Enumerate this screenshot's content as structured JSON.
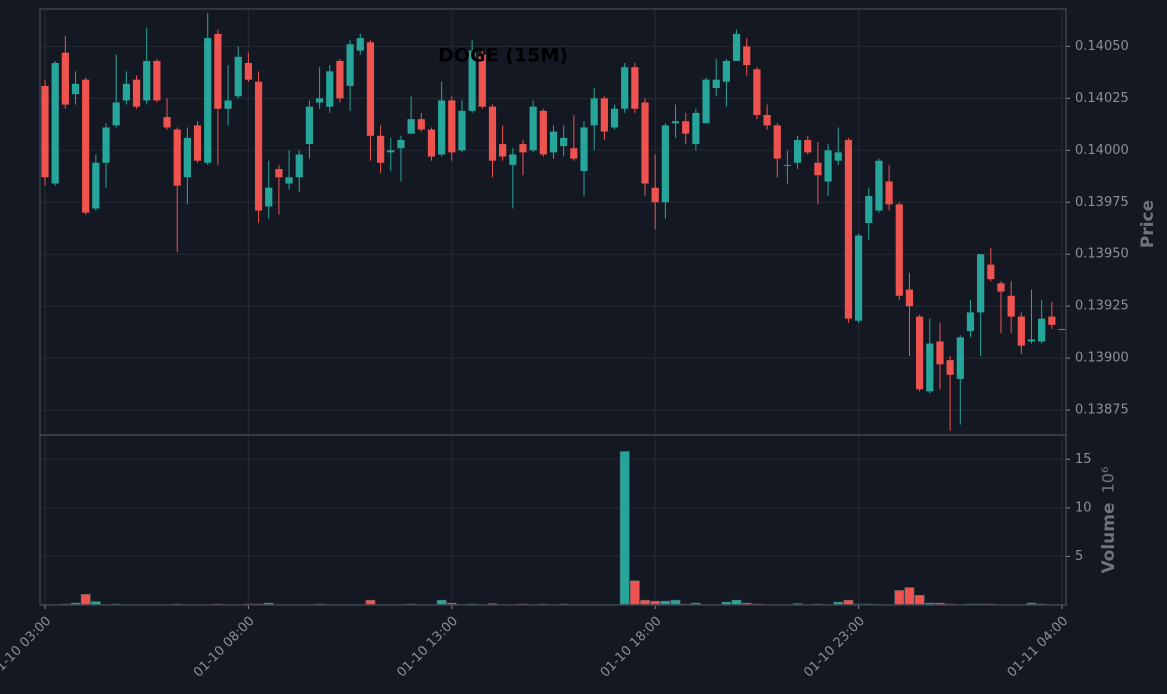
{
  "chart_data": {
    "type": "candlestick",
    "title": "DOGE (15M)",
    "ylabel": "Price",
    "volume_label": "Volume",
    "volume_exponent": "10⁶",
    "x": [
      "01-10 03:00",
      "01-10 03:15",
      "01-10 03:30",
      "01-10 03:45",
      "01-10 04:00",
      "01-10 04:15",
      "01-10 04:30",
      "01-10 04:45",
      "01-10 05:00",
      "01-10 05:15",
      "01-10 05:30",
      "01-10 05:45",
      "01-10 06:00",
      "01-10 06:15",
      "01-10 06:30",
      "01-10 06:45",
      "01-10 07:00",
      "01-10 07:15",
      "01-10 07:30",
      "01-10 07:45",
      "01-10 08:00",
      "01-10 08:15",
      "01-10 08:30",
      "01-10 08:45",
      "01-10 09:00",
      "01-10 09:15",
      "01-10 09:30",
      "01-10 09:45",
      "01-10 10:00",
      "01-10 10:15",
      "01-10 10:30",
      "01-10 10:45",
      "01-10 11:00",
      "01-10 11:15",
      "01-10 11:30",
      "01-10 11:45",
      "01-10 12:00",
      "01-10 12:15",
      "01-10 12:30",
      "01-10 12:45",
      "01-10 13:00",
      "01-10 13:15",
      "01-10 13:30",
      "01-10 13:45",
      "01-10 14:00",
      "01-10 14:15",
      "01-10 14:30",
      "01-10 14:45",
      "01-10 15:00",
      "01-10 15:15",
      "01-10 15:30",
      "01-10 15:45",
      "01-10 16:00",
      "01-10 16:15",
      "01-10 16:30",
      "01-10 16:45",
      "01-10 17:00",
      "01-10 17:15",
      "01-10 17:30",
      "01-10 17:45",
      "01-10 18:00",
      "01-10 18:15",
      "01-10 18:30",
      "01-10 18:45",
      "01-10 19:00",
      "01-10 19:15",
      "01-10 19:30",
      "01-10 19:45",
      "01-10 20:00",
      "01-10 20:15",
      "01-10 20:30",
      "01-10 20:45",
      "01-10 21:00",
      "01-10 21:15",
      "01-10 21:30",
      "01-10 21:45",
      "01-10 22:00",
      "01-10 22:15",
      "01-10 22:30",
      "01-10 22:45",
      "01-10 23:00",
      "01-10 23:15",
      "01-10 23:30",
      "01-10 23:45",
      "01-11 00:00",
      "01-11 00:15",
      "01-11 00:30",
      "01-11 00:45",
      "01-11 01:00",
      "01-11 01:15",
      "01-11 01:30",
      "01-11 01:45",
      "01-11 02:00",
      "01-11 02:15",
      "01-11 02:30",
      "01-11 02:45",
      "01-11 03:00",
      "01-11 03:15",
      "01-11 03:30",
      "01-11 03:45",
      "01-11 04:00"
    ],
    "open": [
      0.14031,
      0.13984,
      0.14047,
      0.14027,
      0.14034,
      0.13972,
      0.13994,
      0.14012,
      0.14024,
      0.14034,
      0.14024,
      0.14043,
      0.14016,
      0.1401,
      0.13987,
      0.14012,
      0.13994,
      0.14056,
      0.1402,
      0.14026,
      0.14042,
      0.14033,
      0.13973,
      0.13991,
      0.13984,
      0.13987,
      0.14003,
      0.14023,
      0.14021,
      0.14043,
      0.14031,
      0.14048,
      0.14052,
      0.14007,
      0.13999,
      0.14001,
      0.14008,
      0.14015,
      0.1401,
      0.13998,
      0.14024,
      0.14,
      0.14019,
      0.14046,
      0.14021,
      0.14003,
      0.13993,
      0.14003,
      0.14,
      0.14019,
      0.13999,
      0.14002,
      0.14001,
      0.1399,
      0.14012,
      0.14025,
      0.14011,
      0.1402,
      0.1404,
      0.14023,
      0.13982,
      0.13975,
      0.14013,
      0.14014,
      0.14003,
      0.14013,
      0.1403,
      0.14033,
      0.14043,
      0.1405,
      0.14039,
      0.14017,
      0.14012,
      0.13993,
      0.13994,
      0.14005,
      0.13994,
      0.13985,
      0.13995,
      0.14005,
      0.13918,
      0.13965,
      0.13971,
      0.13985,
      0.13974,
      0.13933,
      0.1392,
      0.13884,
      0.13908,
      0.13899,
      0.1389,
      0.13913,
      0.13922,
      0.13945,
      0.13936,
      0.1393,
      0.1392,
      0.13908,
      0.13908,
      0.1392,
      0.13914
    ],
    "high": [
      0.14034,
      0.14043,
      0.14055,
      0.14038,
      0.14035,
      0.13998,
      0.14013,
      0.14046,
      0.14038,
      0.14036,
      0.14059,
      0.14044,
      0.14025,
      0.14011,
      0.14011,
      0.14014,
      0.14066,
      0.14058,
      0.14041,
      0.1405,
      0.14047,
      0.14038,
      0.13995,
      0.13993,
      0.14,
      0.14,
      0.14024,
      0.1404,
      0.14041,
      0.14044,
      0.14053,
      0.14056,
      0.14053,
      0.14012,
      0.14006,
      0.14007,
      0.14026,
      0.14018,
      0.14011,
      0.14033,
      0.14026,
      0.14024,
      0.14053,
      0.14048,
      0.14022,
      0.14012,
      0.14001,
      0.14005,
      0.14024,
      0.1402,
      0.14012,
      0.14012,
      0.14017,
      0.14014,
      0.1403,
      0.14026,
      0.14022,
      0.14042,
      0.14042,
      0.14025,
      0.13998,
      0.14013,
      0.14022,
      0.14018,
      0.1402,
      0.14035,
      0.14044,
      0.14044,
      0.14058,
      0.14054,
      0.1404,
      0.14022,
      0.14013,
      0.14,
      0.14007,
      0.14007,
      0.14004,
      0.14003,
      0.14011,
      0.14006,
      0.1396,
      0.13982,
      0.13996,
      0.13993,
      0.13975,
      0.13941,
      0.13921,
      0.13919,
      0.13917,
      0.13901,
      0.13911,
      0.13928,
      0.1395,
      0.13953,
      0.13937,
      0.13937,
      0.13922,
      0.13933,
      0.13928,
      0.13927,
      0.13914
    ],
    "low": [
      0.13983,
      0.13983,
      0.1402,
      0.14022,
      0.13969,
      0.13971,
      0.13982,
      0.14011,
      0.14022,
      0.1402,
      0.14022,
      0.14023,
      0.1401,
      0.13951,
      0.13974,
      0.13994,
      0.13993,
      0.13993,
      0.14012,
      0.14025,
      0.14033,
      0.13965,
      0.13967,
      0.13969,
      0.13981,
      0.1398,
      0.13996,
      0.1402,
      0.14018,
      0.14023,
      0.14019,
      0.14046,
      0.13995,
      0.13989,
      0.1399,
      0.13985,
      0.14008,
      0.14009,
      0.13995,
      0.13997,
      0.13995,
      0.13999,
      0.14018,
      0.1402,
      0.13987,
      0.13995,
      0.13972,
      0.13988,
      0.13999,
      0.13997,
      0.13996,
      0.13997,
      0.13995,
      0.13978,
      0.14,
      0.14005,
      0.1401,
      0.14018,
      0.14018,
      0.13978,
      0.13962,
      0.13967,
      0.14006,
      0.14003,
      0.14,
      0.14013,
      0.14026,
      0.14021,
      0.14043,
      0.14036,
      0.14015,
      0.1401,
      0.13987,
      0.13984,
      0.13991,
      0.13998,
      0.13974,
      0.13978,
      0.13993,
      0.13917,
      0.13917,
      0.13957,
      0.1397,
      0.13971,
      0.13928,
      0.13901,
      0.13884,
      0.13883,
      0.13885,
      0.13865,
      0.13868,
      0.1391,
      0.13901,
      0.13937,
      0.13912,
      0.13912,
      0.13902,
      0.13907,
      0.13907,
      0.13914,
      0.13914
    ],
    "close": [
      0.13987,
      0.14042,
      0.14022,
      0.14032,
      0.1397,
      0.13994,
      0.14011,
      0.14023,
      0.14032,
      0.14021,
      0.14043,
      0.14024,
      0.14011,
      0.13983,
      0.14006,
      0.13995,
      0.14054,
      0.1402,
      0.14024,
      0.14045,
      0.14034,
      0.13971,
      0.13982,
      0.13987,
      0.13987,
      0.13998,
      0.14021,
      0.14025,
      0.14038,
      0.14025,
      0.14051,
      0.14054,
      0.14007,
      0.13994,
      0.14,
      0.14005,
      0.14015,
      0.1401,
      0.13997,
      0.14024,
      0.13999,
      0.14019,
      0.14048,
      0.14021,
      0.13995,
      0.13997,
      0.13998,
      0.13999,
      0.14021,
      0.13998,
      0.14009,
      0.14006,
      0.13996,
      0.14011,
      0.14025,
      0.14009,
      0.1402,
      0.1404,
      0.1402,
      0.13984,
      0.13975,
      0.14012,
      0.14014,
      0.14008,
      0.14018,
      0.14034,
      0.14034,
      0.14043,
      0.14056,
      0.14041,
      0.14017,
      0.14012,
      0.13996,
      0.13993,
      0.14005,
      0.13999,
      0.13988,
      0.14,
      0.13999,
      0.13919,
      0.13959,
      0.13978,
      0.13995,
      0.13974,
      0.1393,
      0.13925,
      0.13885,
      0.13907,
      0.13897,
      0.13892,
      0.1391,
      0.13922,
      0.1395,
      0.13938,
      0.13932,
      0.1392,
      0.13906,
      0.13909,
      0.13919,
      0.13916,
      0.13914
    ],
    "volume": [
      0.05,
      0.05,
      0.1,
      0.2,
      1.1,
      0.35,
      0.05,
      0.1,
      0.05,
      0.05,
      0.05,
      0.05,
      0.05,
      0.1,
      0.05,
      0.05,
      0.05,
      0.1,
      0.05,
      0.05,
      0.1,
      0.1,
      0.2,
      0.05,
      0.05,
      0.05,
      0.05,
      0.1,
      0.05,
      0.05,
      0.05,
      0.05,
      0.5,
      0.05,
      0.05,
      0.05,
      0.1,
      0.05,
      0.05,
      0.5,
      0.2,
      0.05,
      0.1,
      0.05,
      0.15,
      0.05,
      0.05,
      0.1,
      0.05,
      0.1,
      0.05,
      0.1,
      0.05,
      0.05,
      0.05,
      0.05,
      0.05,
      15.8,
      2.5,
      0.5,
      0.4,
      0.4,
      0.5,
      0.1,
      0.2,
      0.05,
      0.05,
      0.3,
      0.5,
      0.2,
      0.1,
      0.05,
      0.05,
      0.05,
      0.15,
      0.05,
      0.1,
      0.05,
      0.3,
      0.5,
      0.1,
      0.1,
      0.05,
      0.05,
      1.5,
      1.8,
      1.0,
      0.2,
      0.2,
      0.1,
      0.05,
      0.1,
      0.1,
      0.1,
      0.05,
      0.05,
      0.05,
      0.2,
      0.1,
      0.05,
      0.05
    ],
    "up_color": "#26a69a",
    "down_color": "#ef5350",
    "ylim": [
      0.13863,
      0.14068
    ],
    "yticks": [
      {
        "value": 0.13875,
        "label": "0.13875"
      },
      {
        "value": 0.139,
        "label": "0.13900"
      },
      {
        "value": 0.13925,
        "label": "0.13925"
      },
      {
        "value": 0.1395,
        "label": "0.13950"
      },
      {
        "value": 0.13975,
        "label": "0.13975"
      },
      {
        "value": 0.14,
        "label": "0.14000"
      },
      {
        "value": 0.14025,
        "label": "0.14025"
      },
      {
        "value": 0.1405,
        "label": "0.14050"
      }
    ],
    "volume_ylim": [
      0,
      17.5
    ],
    "volume_yticks": [
      5,
      10,
      15
    ],
    "xticks": [
      "01-10 03:00",
      "01-10 08:00",
      "01-10 13:00",
      "01-10 18:00",
      "01-10 23:00",
      "01-11 04:00"
    ],
    "grid": true
  }
}
